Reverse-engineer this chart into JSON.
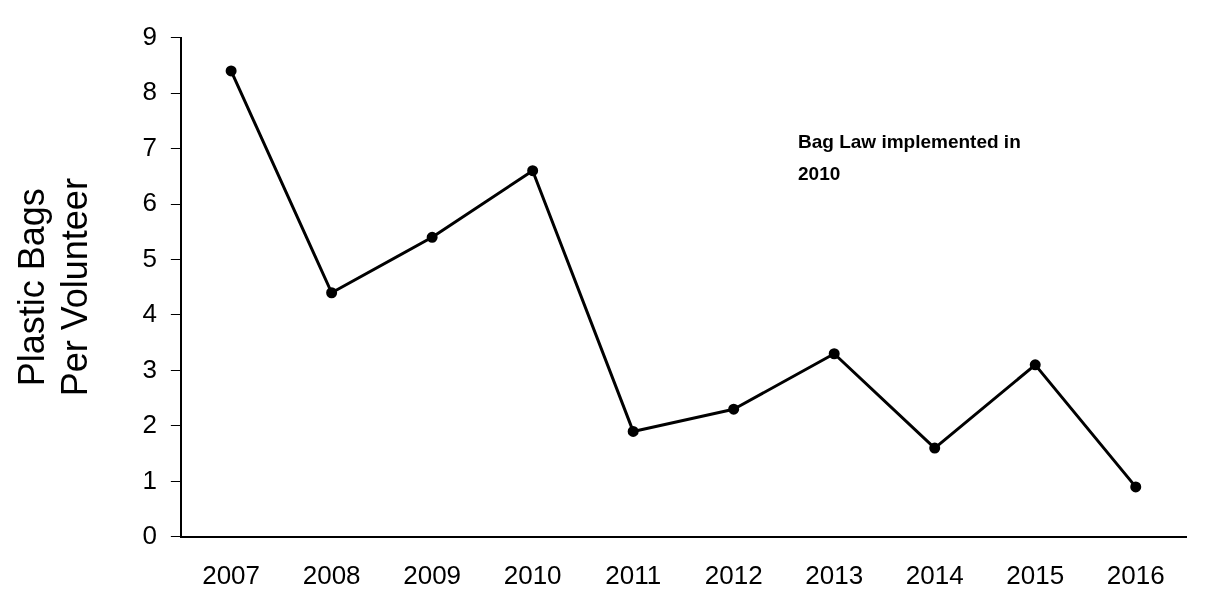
{
  "chart_data": {
    "type": "line",
    "ylabel": "Plastic Bags Per Volunteer",
    "categories": [
      "2007",
      "2008",
      "2009",
      "2010",
      "2011",
      "2012",
      "2013",
      "2014",
      "2015",
      "2016"
    ],
    "series": [
      {
        "color": "#000000",
        "values": [
          8.4,
          4.4,
          5.4,
          6.6,
          1.9,
          2.3,
          3.3,
          1.6,
          3.1,
          0.9
        ]
      }
    ],
    "ylim": [
      0,
      9
    ],
    "yticks": [
      0,
      1,
      2,
      3,
      4,
      5,
      6,
      7,
      8,
      9
    ],
    "grid": false,
    "legend": false,
    "marker": "circle",
    "line_style": "solid",
    "annotations": [
      "Bag Law implemented in 2010"
    ]
  }
}
